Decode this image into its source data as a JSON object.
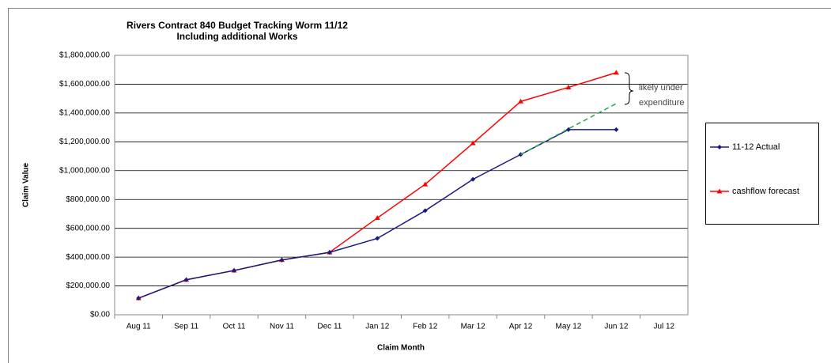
{
  "chart_data": {
    "type": "line",
    "title": [
      "Rivers Contract 840  Budget Tracking Worm 11/12",
      "Including additional Works"
    ],
    "x_label": "Claim Month",
    "y_label": "Claim Value",
    "categories": [
      "Aug 11",
      "Sep 11",
      "Oct 11",
      "Nov 11",
      "Dec 11",
      "Jan 12",
      "Feb 12",
      "Mar 12",
      "Apr 12",
      "May 12",
      "Jun 12",
      "Jul 12"
    ],
    "series": [
      {
        "name": "11-12 Actual",
        "color": "#1a1a80",
        "marker": "diamond",
        "values": [
          115000,
          243000,
          307000,
          380000,
          433000,
          530000,
          722000,
          940000,
          1112000,
          1285000,
          1285000,
          null
        ]
      },
      {
        "name": "cashflow forecast",
        "color": "#ff0000",
        "marker": "triangle",
        "values": [
          115000,
          243000,
          307000,
          380000,
          433000,
          672000,
          905000,
          1190000,
          1480000,
          1578000,
          1680000,
          null
        ]
      }
    ],
    "projection": {
      "color": "#22a84a",
      "values": [
        null,
        null,
        null,
        null,
        null,
        null,
        null,
        null,
        1112000,
        1290000,
        1465000,
        null
      ]
    },
    "annotation": [
      "likely under",
      "expenditure"
    ],
    "ylim": [
      0,
      1800000
    ],
    "yticks": [
      {
        "value": 0,
        "label": "$0.00"
      },
      {
        "value": 200000,
        "label": "$200,000.00"
      },
      {
        "value": 400000,
        "label": "$400,000.00"
      },
      {
        "value": 600000,
        "label": "$600,000.00"
      },
      {
        "value": 800000,
        "label": "$800,000.00"
      },
      {
        "value": 1000000,
        "label": "$1,000,000.00"
      },
      {
        "value": 1200000,
        "label": "$1,200,000.00"
      },
      {
        "value": 1400000,
        "label": "$1,400,000.00"
      },
      {
        "value": 1600000,
        "label": "$1,600,000.00"
      },
      {
        "value": 1800000,
        "label": "$1,800,000.00"
      }
    ],
    "grid": true
  }
}
